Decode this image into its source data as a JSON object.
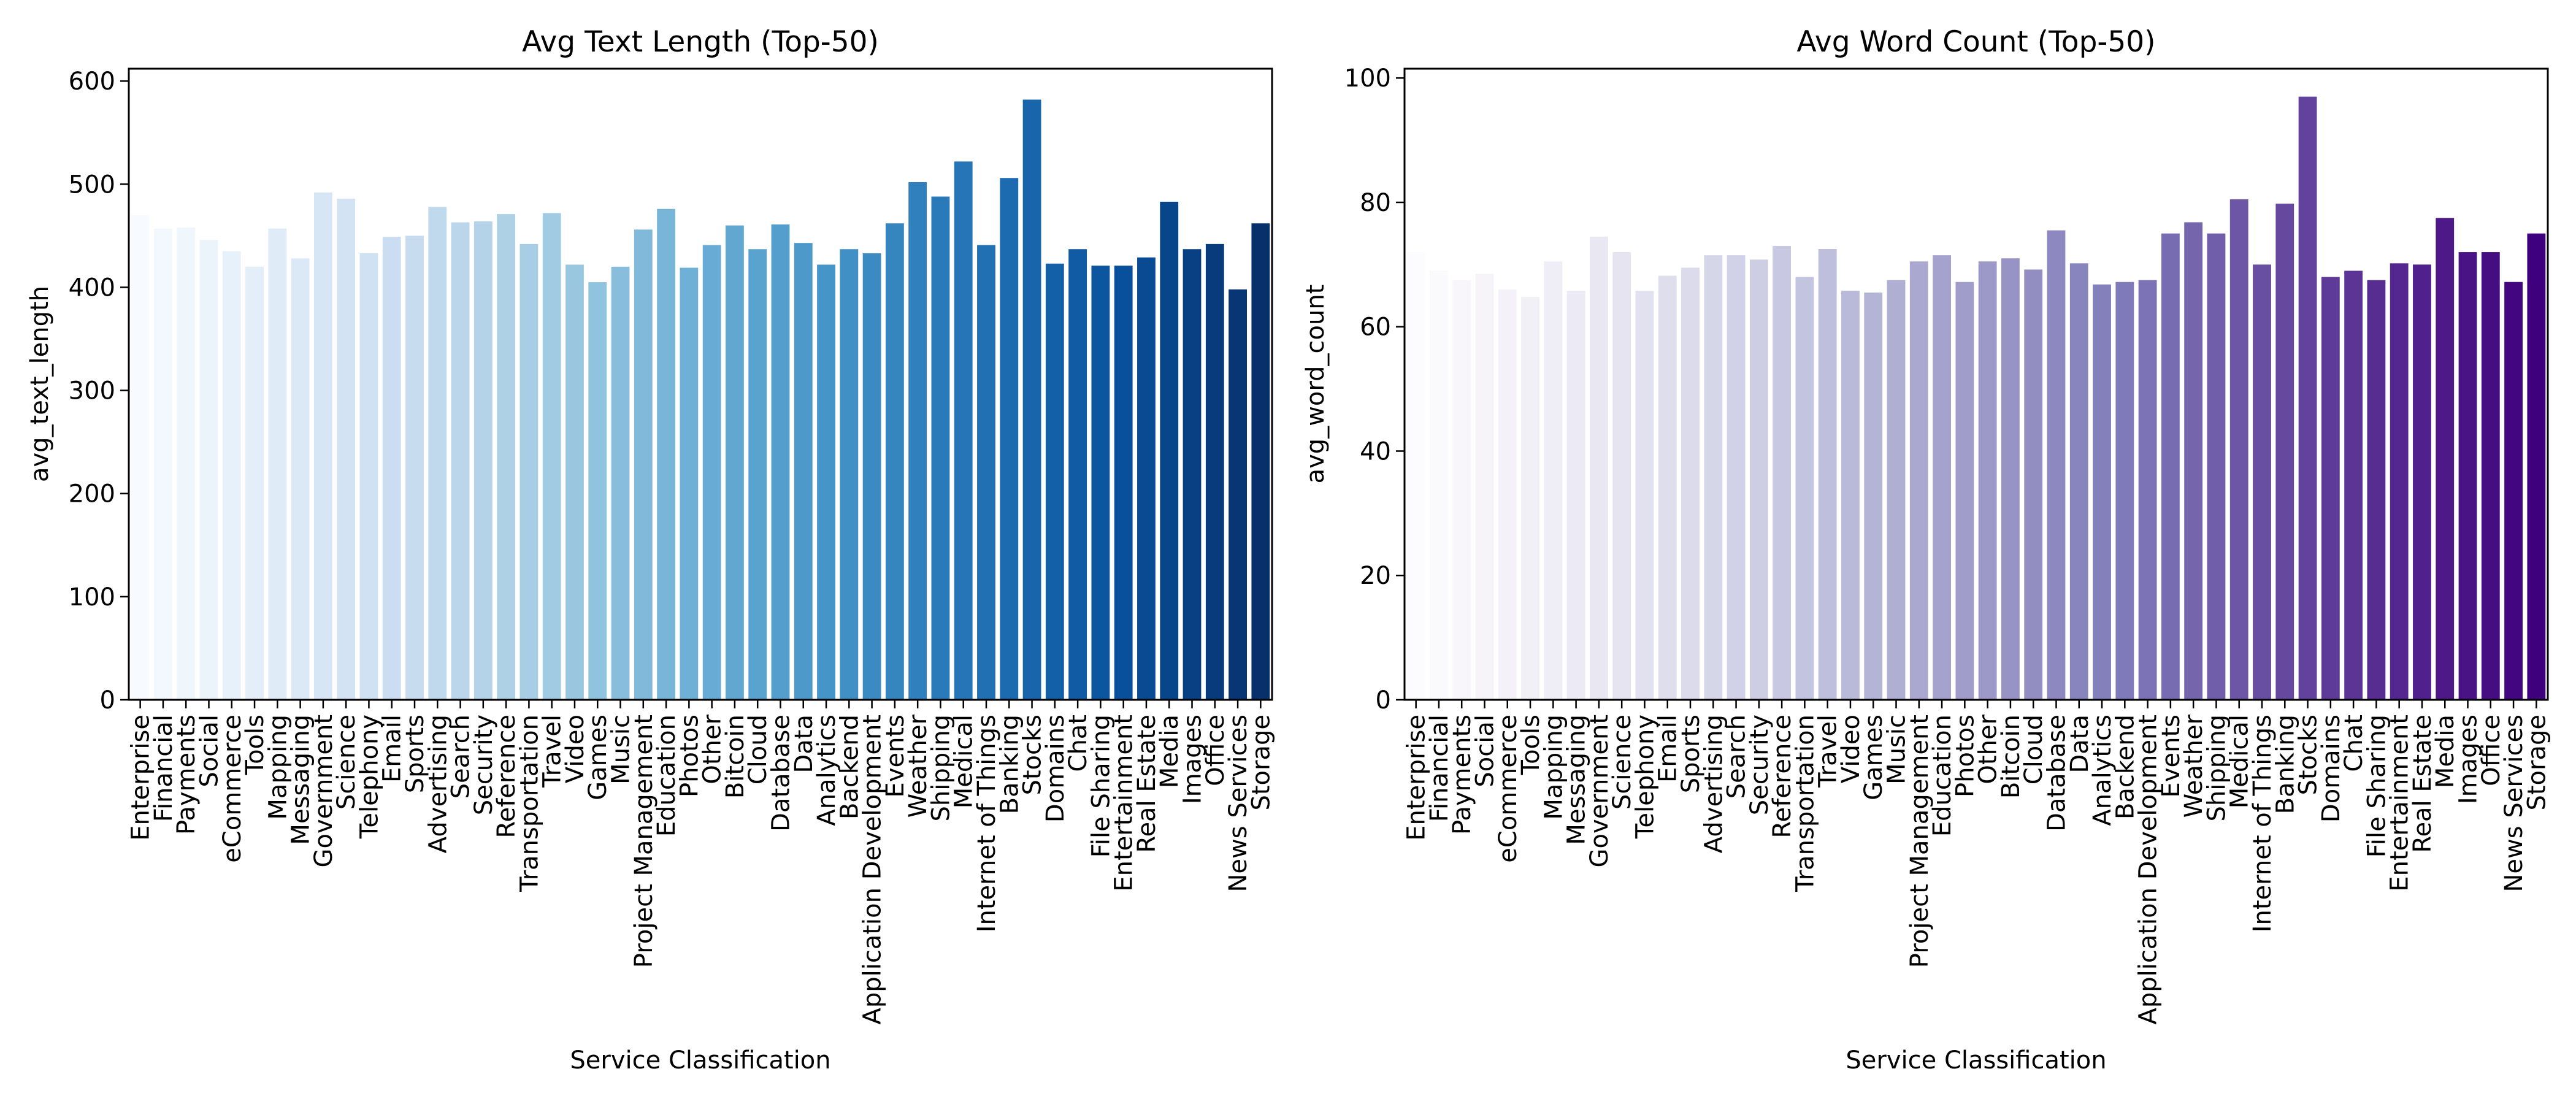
{
  "chart_data": [
    {
      "type": "bar",
      "title": "Avg Text Length (Top-50)",
      "xlabel": "Service Classification",
      "ylabel": "avg_text_length",
      "ylim": [
        0,
        612
      ],
      "yticks": [
        0,
        100,
        200,
        300,
        400,
        500,
        600
      ],
      "palette": [
        "#f7fbff",
        "#deebf7",
        "#c6dbef",
        "#9ecae1",
        "#6baed6",
        "#4292c6",
        "#2171b5",
        "#08519c",
        "#08306b"
      ],
      "grid": false,
      "legend": false,
      "categories": [
        "Enterprise",
        "Financial",
        "Payments",
        "Social",
        "eCommerce",
        "Tools",
        "Mapping",
        "Messaging",
        "Government",
        "Science",
        "Telephony",
        "Email",
        "Sports",
        "Advertising",
        "Search",
        "Security",
        "Reference",
        "Transportation",
        "Travel",
        "Video",
        "Games",
        "Music",
        "Project Management",
        "Education",
        "Photos",
        "Other",
        "Bitcoin",
        "Cloud",
        "Database",
        "Data",
        "Analytics",
        "Backend",
        "Application Development",
        "Events",
        "Weather",
        "Shipping",
        "Medical",
        "Internet of Things",
        "Banking",
        "Stocks",
        "Domains",
        "Chat",
        "File Sharing",
        "Entertainment",
        "Real Estate",
        "Media",
        "Images",
        "Office",
        "News Services",
        "Storage"
      ],
      "values": [
        470,
        457,
        458,
        446,
        435,
        420,
        457,
        428,
        492,
        486,
        433,
        449,
        450,
        478,
        463,
        464,
        471,
        442,
        472,
        422,
        405,
        420,
        456,
        476,
        419,
        441,
        460,
        437,
        461,
        443,
        422,
        437,
        433,
        462,
        502,
        488,
        522,
        441,
        506,
        582,
        423,
        437,
        421,
        421,
        429,
        483,
        437,
        442,
        398,
        462
      ]
    },
    {
      "type": "bar",
      "title": "Avg Word Count (Top-50)",
      "xlabel": "Service Classification",
      "ylabel": "avg_word_count",
      "ylim": [
        0,
        101.5
      ],
      "yticks": [
        0,
        20,
        40,
        60,
        80,
        100
      ],
      "palette": [
        "#fcfbfd",
        "#efedf5",
        "#dadaeb",
        "#bcbddc",
        "#9e9ac8",
        "#807dba",
        "#6a51a3",
        "#54278f",
        "#3f007d"
      ],
      "grid": false,
      "legend": false,
      "categories": [
        "Enterprise",
        "Financial",
        "Payments",
        "Social",
        "eCommerce",
        "Tools",
        "Mapping",
        "Messaging",
        "Government",
        "Science",
        "Telephony",
        "Email",
        "Sports",
        "Advertising",
        "Search",
        "Security",
        "Reference",
        "Transportation",
        "Travel",
        "Video",
        "Games",
        "Music",
        "Project Management",
        "Education",
        "Photos",
        "Other",
        "Bitcoin",
        "Cloud",
        "Database",
        "Data",
        "Analytics",
        "Backend",
        "Application Development",
        "Events",
        "Weather",
        "Shipping",
        "Medical",
        "Internet of Things",
        "Banking",
        "Stocks",
        "Domains",
        "Chat",
        "File Sharing",
        "Entertainment",
        "Real Estate",
        "Media",
        "Images",
        "Office",
        "News Services",
        "Storage"
      ],
      "values": [
        72,
        69,
        67.5,
        68.5,
        66,
        64.8,
        70.5,
        65.8,
        74.5,
        72,
        65.8,
        68.2,
        69.5,
        71.5,
        71.5,
        70.8,
        73,
        68,
        72.5,
        65.8,
        65.5,
        67.5,
        70.5,
        71.5,
        67.2,
        70.5,
        71,
        69.2,
        75.5,
        70.2,
        66.8,
        67.2,
        67.5,
        75,
        76.8,
        75,
        80.5,
        70,
        79.8,
        97,
        68,
        69,
        67.5,
        70.2,
        70,
        77.5,
        72,
        72,
        67.2,
        75
      ]
    }
  ]
}
